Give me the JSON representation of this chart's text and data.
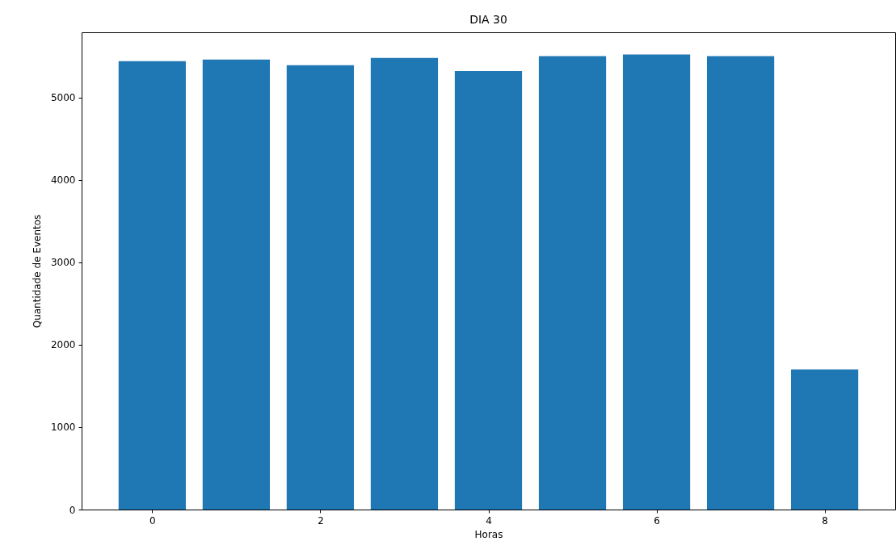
{
  "chart_data": {
    "type": "bar",
    "title": "DIA 30",
    "xlabel": "Horas",
    "ylabel": "Quantidade de Eventos",
    "x": [
      0,
      1,
      2,
      3,
      4,
      5,
      6,
      7,
      8
    ],
    "values": [
      5440,
      5460,
      5390,
      5480,
      5320,
      5500,
      5520,
      5500,
      1700
    ],
    "color": "#1f77b4",
    "xlim": [
      -0.84,
      8.84
    ],
    "xticks": [
      0,
      2,
      4,
      6,
      8
    ],
    "ylim": [
      0,
      5790
    ],
    "yticks": [
      0,
      1000,
      2000,
      3000,
      4000,
      5000
    ]
  }
}
